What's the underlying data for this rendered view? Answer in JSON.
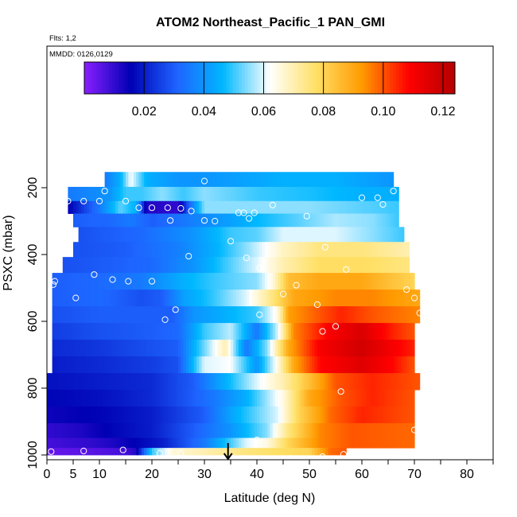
{
  "chart_data": {
    "type": "heatmap",
    "title": "ATOM2 Northeast_Pacific_1 PAN_GMI",
    "flights_label": "Flts: 1,2",
    "dates_label": "MMDD: 0126,0129",
    "xlabel": "Latitude (deg N)",
    "ylabel": "PSXC (mbar)",
    "xlim": [
      0,
      85
    ],
    "ylim": [
      1000,
      0
    ],
    "x_ticks": [
      0,
      5,
      10,
      20,
      30,
      40,
      50,
      60,
      70,
      80
    ],
    "y_ticks": [
      200,
      400,
      600,
      800,
      1000
    ],
    "colorbar": {
      "range": [
        0.0,
        0.124
      ],
      "ticks": [
        0.02,
        0.04,
        0.06,
        0.08,
        0.1,
        0.12
      ],
      "tick_labels": [
        "0.02",
        "0.04",
        "0.06",
        "0.08",
        "0.10",
        "0.12"
      ],
      "colors": [
        "#8a1fff",
        "#0000b4",
        "#1e64ff",
        "#00b8ff",
        "#ffffff",
        "#ffe066",
        "#ff9a00",
        "#ff0000",
        "#b40000"
      ]
    },
    "arrow_latitude": 34.5,
    "bands": [
      {
        "p": 175,
        "lat0": 11,
        "lat1": 66,
        "knots": [
          [
            11,
            0.035
          ],
          [
            14,
            0.045
          ],
          [
            16,
            0.062
          ],
          [
            19,
            0.045
          ],
          [
            25,
            0.04
          ],
          [
            30,
            0.04
          ],
          [
            36,
            0.042
          ],
          [
            45,
            0.045
          ],
          [
            55,
            0.045
          ],
          [
            66,
            0.04
          ]
        ]
      },
      {
        "p": 220,
        "lat0": 4,
        "lat1": 67,
        "knots": [
          [
            4,
            0.035
          ],
          [
            12,
            0.04
          ],
          [
            15,
            0.05
          ],
          [
            18,
            0.05
          ],
          [
            22,
            0.055
          ],
          [
            26,
            0.05
          ],
          [
            30,
            0.055
          ],
          [
            40,
            0.05
          ],
          [
            50,
            0.048
          ],
          [
            60,
            0.045
          ],
          [
            67,
            0.045
          ]
        ]
      },
      {
        "p": 260,
        "lat0": 4,
        "lat1": 67,
        "knots": [
          [
            4,
            0.015
          ],
          [
            10,
            0.035
          ],
          [
            14,
            0.052
          ],
          [
            17,
            0.045
          ],
          [
            19,
            0.012
          ],
          [
            25,
            0.01
          ],
          [
            27,
            0.03
          ],
          [
            30,
            0.055
          ],
          [
            40,
            0.055
          ],
          [
            50,
            0.055
          ],
          [
            60,
            0.052
          ],
          [
            67,
            0.05
          ]
        ]
      },
      {
        "p": 295,
        "lat0": 5,
        "lat1": 67,
        "knots": [
          [
            5,
            0.03
          ],
          [
            12,
            0.032
          ],
          [
            16,
            0.035
          ],
          [
            20,
            0.03
          ],
          [
            24,
            0.033
          ],
          [
            30,
            0.038
          ],
          [
            38,
            0.045
          ],
          [
            45,
            0.05
          ],
          [
            55,
            0.057
          ],
          [
            62,
            0.055
          ],
          [
            67,
            0.05
          ]
        ]
      },
      {
        "p": 340,
        "lat0": 6,
        "lat1": 68,
        "knots": [
          [
            6,
            0.028
          ],
          [
            12,
            0.03
          ],
          [
            18,
            0.032
          ],
          [
            22,
            0.035
          ],
          [
            28,
            0.04
          ],
          [
            35,
            0.05
          ],
          [
            40,
            0.052
          ],
          [
            45,
            0.06
          ],
          [
            55,
            0.06
          ],
          [
            62,
            0.055
          ],
          [
            68,
            0.05
          ]
        ]
      },
      {
        "p": 385,
        "lat0": 5,
        "lat1": 69,
        "knots": [
          [
            5,
            0.028
          ],
          [
            15,
            0.03
          ],
          [
            25,
            0.036
          ],
          [
            32,
            0.045
          ],
          [
            38,
            0.055
          ],
          [
            45,
            0.068
          ],
          [
            52,
            0.075
          ],
          [
            60,
            0.075
          ],
          [
            69,
            0.07
          ]
        ]
      },
      {
        "p": 430,
        "lat0": 3,
        "lat1": 69,
        "knots": [
          [
            3,
            0.028
          ],
          [
            12,
            0.03
          ],
          [
            20,
            0.032
          ],
          [
            28,
            0.04
          ],
          [
            34,
            0.05
          ],
          [
            40,
            0.06
          ],
          [
            45,
            0.07
          ],
          [
            52,
            0.078
          ],
          [
            60,
            0.078
          ],
          [
            69,
            0.075
          ]
        ]
      },
      {
        "p": 480,
        "lat0": 1,
        "lat1": 70,
        "knots": [
          [
            1,
            0.03
          ],
          [
            10,
            0.032
          ],
          [
            18,
            0.035
          ],
          [
            26,
            0.045
          ],
          [
            32,
            0.05
          ],
          [
            40,
            0.055
          ],
          [
            43,
            0.065
          ],
          [
            46,
            0.085
          ],
          [
            52,
            0.09
          ],
          [
            60,
            0.09
          ],
          [
            70,
            0.08
          ]
        ]
      },
      {
        "p": 530,
        "lat0": 1,
        "lat1": 71,
        "knots": [
          [
            1,
            0.03
          ],
          [
            10,
            0.032
          ],
          [
            18,
            0.028
          ],
          [
            22,
            0.03
          ],
          [
            26,
            0.042
          ],
          [
            32,
            0.05
          ],
          [
            38,
            0.06
          ],
          [
            43,
            0.075
          ],
          [
            47,
            0.09
          ],
          [
            55,
            0.095
          ],
          [
            62,
            0.095
          ],
          [
            71,
            0.09
          ]
        ]
      },
      {
        "p": 580,
        "lat0": 1,
        "lat1": 71,
        "knots": [
          [
            1,
            0.028
          ],
          [
            10,
            0.03
          ],
          [
            18,
            0.03
          ],
          [
            24,
            0.03
          ],
          [
            28,
            0.04
          ],
          [
            34,
            0.045
          ],
          [
            40,
            0.05
          ],
          [
            44,
            0.065
          ],
          [
            46,
            0.092
          ],
          [
            52,
            0.1
          ],
          [
            56,
            0.105
          ],
          [
            62,
            0.1
          ],
          [
            71,
            0.095
          ]
        ]
      },
      {
        "p": 630,
        "lat0": 1,
        "lat1": 70,
        "knots": [
          [
            1,
            0.025
          ],
          [
            10,
            0.028
          ],
          [
            20,
            0.03
          ],
          [
            25,
            0.032
          ],
          [
            30,
            0.05
          ],
          [
            35,
            0.058
          ],
          [
            40,
            0.035
          ],
          [
            44,
            0.06
          ],
          [
            47,
            0.095
          ],
          [
            54,
            0.11
          ],
          [
            60,
            0.116
          ],
          [
            66,
            0.105
          ],
          [
            70,
            0.1
          ]
        ]
      },
      {
        "p": 680,
        "lat0": 1,
        "lat1": 70,
        "knots": [
          [
            1,
            0.022
          ],
          [
            10,
            0.024
          ],
          [
            20,
            0.028
          ],
          [
            25,
            0.03
          ],
          [
            28,
            0.045
          ],
          [
            34,
            0.07
          ],
          [
            38,
            0.035
          ],
          [
            42,
            0.055
          ],
          [
            46,
            0.09
          ],
          [
            52,
            0.11
          ],
          [
            60,
            0.118
          ],
          [
            66,
            0.11
          ],
          [
            70,
            0.105
          ]
        ]
      },
      {
        "p": 730,
        "lat0": 1,
        "lat1": 70,
        "knots": [
          [
            1,
            0.02
          ],
          [
            10,
            0.022
          ],
          [
            20,
            0.025
          ],
          [
            25,
            0.028
          ],
          [
            30,
            0.06
          ],
          [
            35,
            0.062
          ],
          [
            40,
            0.04
          ],
          [
            44,
            0.065
          ],
          [
            47,
            0.09
          ],
          [
            52,
            0.108
          ],
          [
            60,
            0.115
          ],
          [
            66,
            0.108
          ],
          [
            70,
            0.1
          ]
        ]
      },
      {
        "p": 780,
        "lat0": 0,
        "lat1": 71,
        "knots": [
          [
            0,
            0.018
          ],
          [
            10,
            0.02
          ],
          [
            20,
            0.022
          ],
          [
            28,
            0.03
          ],
          [
            34,
            0.045
          ],
          [
            40,
            0.06
          ],
          [
            45,
            0.07
          ],
          [
            50,
            0.085
          ],
          [
            55,
            0.1
          ],
          [
            62,
            0.105
          ],
          [
            71,
            0.1
          ]
        ]
      },
      {
        "p": 830,
        "lat0": 0,
        "lat1": 70,
        "knots": [
          [
            0,
            0.016
          ],
          [
            10,
            0.018
          ],
          [
            20,
            0.022
          ],
          [
            26,
            0.028
          ],
          [
            32,
            0.035
          ],
          [
            38,
            0.045
          ],
          [
            45,
            0.065
          ],
          [
            50,
            0.09
          ],
          [
            56,
            0.1
          ],
          [
            62,
            0.105
          ],
          [
            70,
            0.1
          ]
        ]
      },
      {
        "p": 880,
        "lat0": 0,
        "lat1": 70,
        "knots": [
          [
            0,
            0.014
          ],
          [
            10,
            0.016
          ],
          [
            20,
            0.02
          ],
          [
            25,
            0.025
          ],
          [
            30,
            0.03
          ],
          [
            36,
            0.045
          ],
          [
            44,
            0.06
          ],
          [
            48,
            0.08
          ],
          [
            54,
            0.098
          ],
          [
            60,
            0.105
          ],
          [
            70,
            0.1
          ]
        ]
      },
      {
        "p": 930,
        "lat0": 0,
        "lat1": 70,
        "knots": [
          [
            0,
            0.01
          ],
          [
            6,
            0.012
          ],
          [
            12,
            0.016
          ],
          [
            20,
            0.02
          ],
          [
            28,
            0.03
          ],
          [
            35,
            0.04
          ],
          [
            42,
            0.055
          ],
          [
            46,
            0.075
          ],
          [
            52,
            0.095
          ],
          [
            58,
            0.1
          ],
          [
            70,
            0.098
          ]
        ]
      },
      {
        "p": 968,
        "lat0": 0,
        "lat1": 70,
        "knots": [
          [
            0,
            0.008
          ],
          [
            8,
            0.01
          ],
          [
            12,
            0.012
          ],
          [
            16,
            0.015
          ],
          [
            22,
            0.02
          ],
          [
            30,
            0.035
          ],
          [
            38,
            0.06
          ],
          [
            42,
            0.065
          ],
          [
            46,
            0.08
          ],
          [
            52,
            0.095
          ],
          [
            58,
            0.1
          ],
          [
            70,
            0.098
          ]
        ]
      },
      {
        "p": 990,
        "lat0": 0,
        "lat1": 57,
        "knots": [
          [
            0,
            0.004
          ],
          [
            10,
            0.006
          ],
          [
            15,
            0.008
          ],
          [
            17,
            0.012
          ],
          [
            20,
            0.05
          ],
          [
            24,
            0.066
          ],
          [
            30,
            0.07
          ],
          [
            38,
            0.075
          ],
          [
            45,
            0.078
          ],
          [
            50,
            0.08
          ],
          [
            54,
            0.098
          ],
          [
            57,
            0.1
          ]
        ]
      }
    ],
    "observations": [
      {
        "lat": 11,
        "p": 210
      },
      {
        "lat": 30,
        "p": 180
      },
      {
        "lat": 66,
        "p": 210
      },
      {
        "lat": 4,
        "p": 240
      },
      {
        "lat": 7,
        "p": 240
      },
      {
        "lat": 10,
        "p": 240
      },
      {
        "lat": 15,
        "p": 240
      },
      {
        "lat": 60,
        "p": 230
      },
      {
        "lat": 63,
        "p": 230
      },
      {
        "lat": 64,
        "p": 250
      },
      {
        "lat": 17.5,
        "p": 260
      },
      {
        "lat": 20,
        "p": 260
      },
      {
        "lat": 23,
        "p": 260
      },
      {
        "lat": 25.5,
        "p": 262
      },
      {
        "lat": 27.5,
        "p": 270
      },
      {
        "lat": 36.5,
        "p": 275
      },
      {
        "lat": 37.5,
        "p": 275
      },
      {
        "lat": 39.5,
        "p": 275
      },
      {
        "lat": 38.5,
        "p": 292
      },
      {
        "lat": 43,
        "p": 252
      },
      {
        "lat": 49.5,
        "p": 285
      },
      {
        "lat": 23.5,
        "p": 298
      },
      {
        "lat": 30,
        "p": 298
      },
      {
        "lat": 32,
        "p": 300
      },
      {
        "lat": 35,
        "p": 360
      },
      {
        "lat": 53,
        "p": 378
      },
      {
        "lat": 27,
        "p": 405
      },
      {
        "lat": 38,
        "p": 410
      },
      {
        "lat": 40.5,
        "p": 440
      },
      {
        "lat": 57,
        "p": 445
      },
      {
        "lat": 9,
        "p": 460
      },
      {
        "lat": 12.5,
        "p": 475
      },
      {
        "lat": 15.5,
        "p": 480
      },
      {
        "lat": 20,
        "p": 480
      },
      {
        "lat": 1.5,
        "p": 480
      },
      {
        "lat": 1.2,
        "p": 490
      },
      {
        "lat": 47.5,
        "p": 492
      },
      {
        "lat": 45,
        "p": 518
      },
      {
        "lat": 68.5,
        "p": 505
      },
      {
        "lat": 5.5,
        "p": 530
      },
      {
        "lat": 70,
        "p": 530
      },
      {
        "lat": 24.5,
        "p": 565
      },
      {
        "lat": 51.5,
        "p": 550
      },
      {
        "lat": 40.5,
        "p": 580
      },
      {
        "lat": 71,
        "p": 575
      },
      {
        "lat": 22.5,
        "p": 595
      },
      {
        "lat": 55,
        "p": 615
      },
      {
        "lat": 52.5,
        "p": 630
      },
      {
        "lat": 56,
        "p": 810
      },
      {
        "lat": 70,
        "p": 925
      },
      {
        "lat": 40,
        "p": 955
      },
      {
        "lat": 0.8,
        "p": 990
      },
      {
        "lat": 7,
        "p": 988
      },
      {
        "lat": 14.5,
        "p": 985
      },
      {
        "lat": 21.5,
        "p": 995
      },
      {
        "lat": 25.5,
        "p": 995
      },
      {
        "lat": 46.5,
        "p": 1010
      },
      {
        "lat": 52.5,
        "p": 1005
      },
      {
        "lat": 56.5,
        "p": 998
      }
    ]
  }
}
